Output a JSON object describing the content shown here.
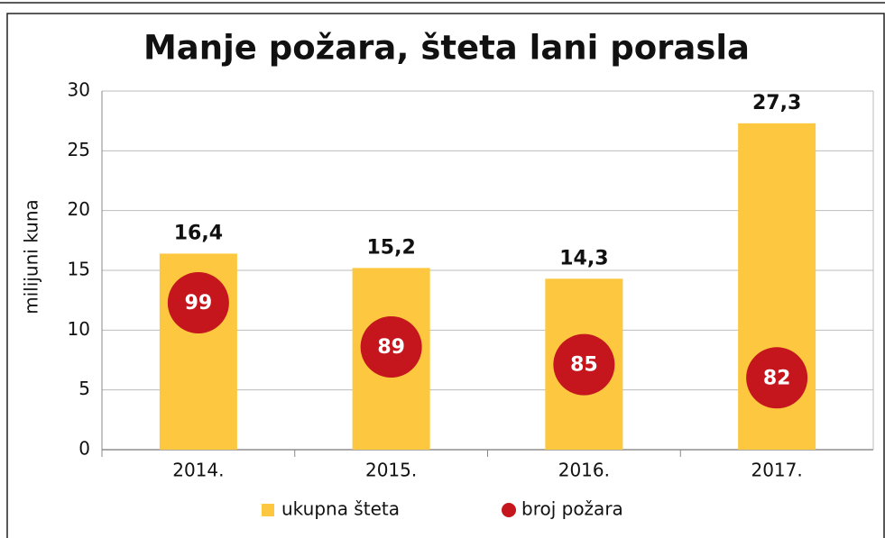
{
  "chart_data": {
    "type": "bar",
    "title": "Manje požara, šteta lani porasla",
    "y_label": "milijuni kuna",
    "categories": [
      "2014.",
      "2015.",
      "2016.",
      "2017."
    ],
    "series": [
      {
        "name": "ukupna šteta",
        "color": "#fdc83f",
        "values": [
          16.4,
          15.2,
          14.3,
          27.3
        ],
        "value_labels": [
          "16,4",
          "15,2",
          "14,3",
          "27,3"
        ]
      },
      {
        "name": "broj požara",
        "color": "#c4161c",
        "values": [
          99,
          89,
          85,
          82
        ]
      }
    ],
    "ylim": [
      0,
      30
    ],
    "yticks": [
      0,
      5,
      10,
      15,
      20,
      25,
      30
    ],
    "grid": true
  }
}
